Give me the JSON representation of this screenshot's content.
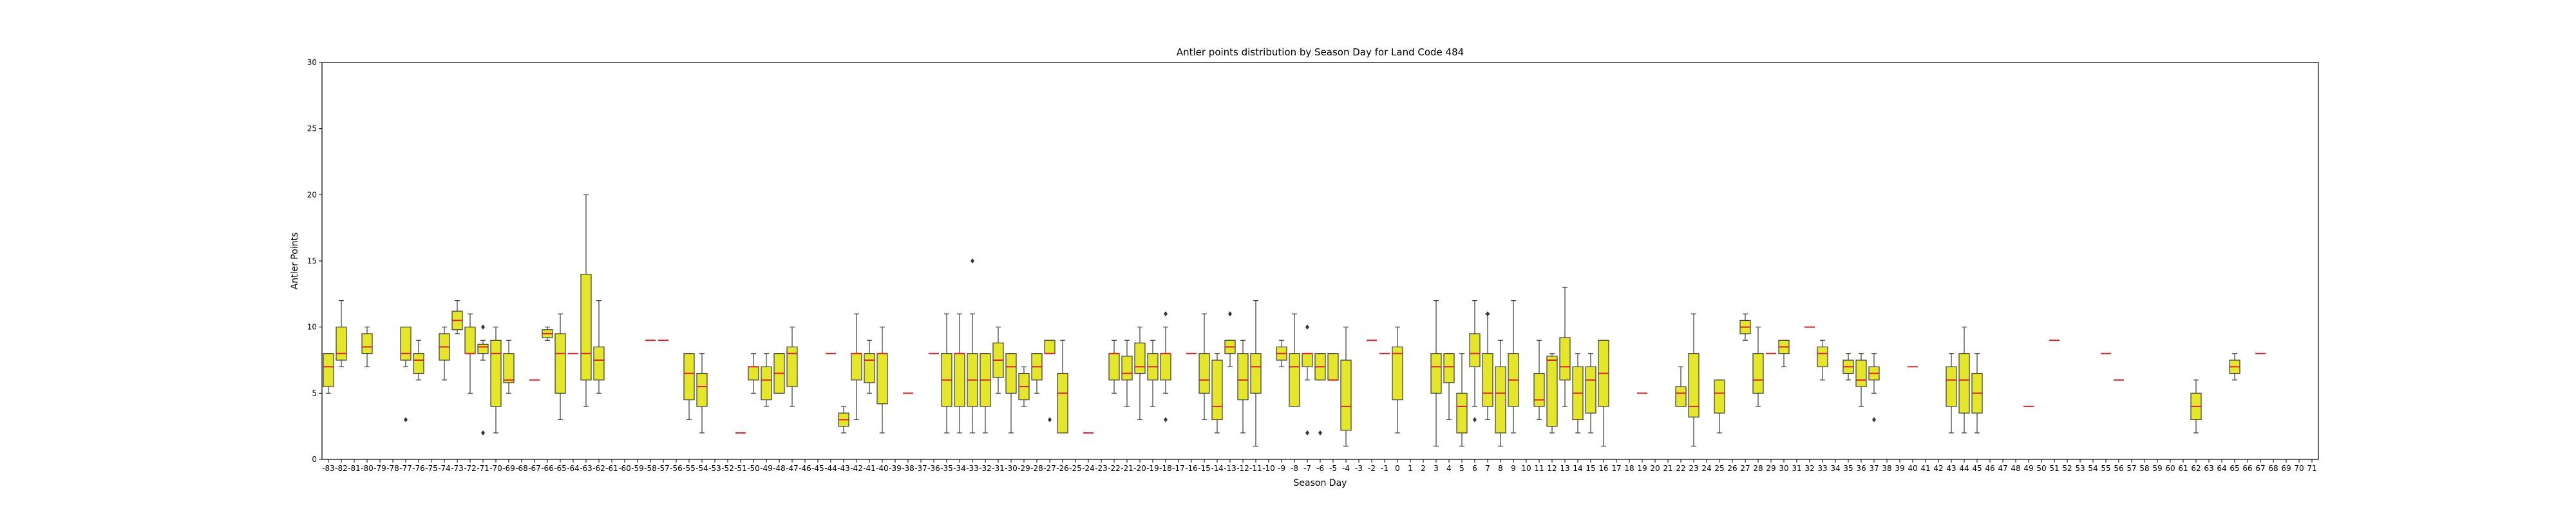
{
  "chart_data": {
    "type": "box",
    "title": "Antler points distribution by Season Day for Land Code 484",
    "xlabel": "Season Day",
    "ylabel": "Antler Points",
    "ylim": [
      0,
      30
    ],
    "yticks": [
      0,
      5,
      10,
      15,
      20,
      25,
      30
    ],
    "categories_range": [
      -83,
      71
    ],
    "grid": false,
    "colors": {
      "box_fill": "#e5e52b",
      "box_edge": "#3a3a3a",
      "median": "#d62728",
      "whisker": "#3a3a3a",
      "axis": "#000000"
    },
    "boxes": [
      {
        "day": -83,
        "q1": 5.5,
        "med": 7,
        "q3": 8,
        "lo": 5,
        "hi": 8
      },
      {
        "day": -82,
        "q1": 7.5,
        "med": 8,
        "q3": 10,
        "lo": 7,
        "hi": 12
      },
      {
        "day": -80,
        "q1": 8,
        "med": 8.5,
        "q3": 9.5,
        "lo": 7,
        "hi": 10
      },
      {
        "day": -77,
        "q1": 7.5,
        "med": 8,
        "q3": 10,
        "lo": 7,
        "hi": 10,
        "fliers": [
          3
        ]
      },
      {
        "day": -76,
        "q1": 6.5,
        "med": 7.5,
        "q3": 8,
        "lo": 6,
        "hi": 9
      },
      {
        "day": -74,
        "q1": 7.5,
        "med": 8.5,
        "q3": 9.5,
        "lo": 6,
        "hi": 10
      },
      {
        "day": -73,
        "q1": 9.8,
        "med": 10.5,
        "q3": 11.2,
        "lo": 9.5,
        "hi": 12
      },
      {
        "day": -72,
        "q1": 8,
        "med": 8,
        "q3": 10,
        "lo": 5,
        "hi": 11
      },
      {
        "day": -71,
        "q1": 8,
        "med": 8.5,
        "q3": 8.7,
        "lo": 7.5,
        "hi": 9,
        "fliers": [
          10,
          2
        ]
      },
      {
        "day": -70,
        "q1": 4,
        "med": 8,
        "q3": 9,
        "lo": 2,
        "hi": 10
      },
      {
        "day": -69,
        "q1": 5.8,
        "med": 6,
        "q3": 8,
        "lo": 5,
        "hi": 9
      },
      {
        "day": -67,
        "med": 6
      },
      {
        "day": -66,
        "q1": 9.2,
        "med": 9.5,
        "q3": 9.8,
        "lo": 9,
        "hi": 10
      },
      {
        "day": -65,
        "q1": 5,
        "med": 8,
        "q3": 9.5,
        "lo": 3,
        "hi": 11
      },
      {
        "day": -64,
        "med": 8
      },
      {
        "day": -63,
        "q1": 6,
        "med": 8,
        "q3": 14,
        "lo": 4,
        "hi": 20
      },
      {
        "day": -62,
        "q1": 6,
        "med": 7.5,
        "q3": 8.5,
        "lo": 5,
        "hi": 12
      },
      {
        "day": -58,
        "med": 9
      },
      {
        "day": -57,
        "med": 9
      },
      {
        "day": -55,
        "q1": 4.5,
        "med": 6.5,
        "q3": 8,
        "lo": 3,
        "hi": 8
      },
      {
        "day": -54,
        "q1": 4,
        "med": 5.5,
        "q3": 6.5,
        "lo": 2,
        "hi": 8
      },
      {
        "day": -51,
        "med": 2
      },
      {
        "day": -50,
        "q1": 6,
        "med": 7,
        "q3": 7,
        "lo": 5,
        "hi": 8
      },
      {
        "day": -49,
        "q1": 4.5,
        "med": 6,
        "q3": 7,
        "lo": 4,
        "hi": 8
      },
      {
        "day": -48,
        "q1": 5,
        "med": 6.5,
        "q3": 8,
        "lo": 5,
        "hi": 8
      },
      {
        "day": -47,
        "q1": 5.5,
        "med": 8,
        "q3": 8.5,
        "lo": 4,
        "hi": 10
      },
      {
        "day": -44,
        "med": 8
      },
      {
        "day": -43,
        "q1": 2.5,
        "med": 3,
        "q3": 3.5,
        "lo": 2,
        "hi": 4
      },
      {
        "day": -42,
        "q1": 6,
        "med": 8,
        "q3": 8,
        "lo": 3,
        "hi": 11
      },
      {
        "day": -41,
        "q1": 5.8,
        "med": 7.5,
        "q3": 8,
        "lo": 5,
        "hi": 9
      },
      {
        "day": -40,
        "q1": 4.2,
        "med": 8,
        "q3": 8,
        "lo": 2,
        "hi": 10
      },
      {
        "day": -38,
        "med": 5
      },
      {
        "day": -36,
        "med": 8
      },
      {
        "day": -35,
        "q1": 4,
        "med": 6,
        "q3": 8,
        "lo": 2,
        "hi": 11
      },
      {
        "day": -34,
        "q1": 4,
        "med": 8,
        "q3": 8,
        "lo": 2,
        "hi": 11
      },
      {
        "day": -33,
        "q1": 4,
        "med": 6,
        "q3": 8,
        "lo": 2,
        "hi": 11,
        "fliers": [
          15
        ]
      },
      {
        "day": -32,
        "q1": 4,
        "med": 6,
        "q3": 8,
        "lo": 2,
        "hi": 8
      },
      {
        "day": -31,
        "q1": 6.2,
        "med": 7.5,
        "q3": 8.8,
        "lo": 5,
        "hi": 10
      },
      {
        "day": -30,
        "q1": 5,
        "med": 7,
        "q3": 8,
        "lo": 2,
        "hi": 8
      },
      {
        "day": -29,
        "q1": 4.5,
        "med": 5.5,
        "q3": 6.5,
        "lo": 4,
        "hi": 7
      },
      {
        "day": -28,
        "q1": 6,
        "med": 7,
        "q3": 8,
        "lo": 5,
        "hi": 8
      },
      {
        "day": -27,
        "q1": 8,
        "med": 8,
        "q3": 9,
        "lo": 8,
        "hi": 9,
        "fliers": [
          3
        ]
      },
      {
        "day": -26,
        "q1": 2,
        "med": 5,
        "q3": 6.5,
        "lo": 2,
        "hi": 9
      },
      {
        "day": -24,
        "med": 2
      },
      {
        "day": -22,
        "q1": 6,
        "med": 8,
        "q3": 8,
        "lo": 5,
        "hi": 9
      },
      {
        "day": -21,
        "q1": 6,
        "med": 6.5,
        "q3": 7.8,
        "lo": 4,
        "hi": 9
      },
      {
        "day": -20,
        "q1": 6.5,
        "med": 7,
        "q3": 8.8,
        "lo": 3,
        "hi": 10
      },
      {
        "day": -19,
        "q1": 6,
        "med": 7,
        "q3": 8,
        "lo": 4,
        "hi": 9
      },
      {
        "day": -18,
        "q1": 6,
        "med": 8,
        "q3": 8,
        "lo": 5,
        "hi": 10,
        "fliers": [
          11,
          3
        ]
      },
      {
        "day": -16,
        "med": 8
      },
      {
        "day": -15,
        "q1": 5,
        "med": 6,
        "q3": 8,
        "lo": 3,
        "hi": 11
      },
      {
        "day": -14,
        "q1": 3,
        "med": 4,
        "q3": 7.5,
        "lo": 2,
        "hi": 8
      },
      {
        "day": -13,
        "q1": 8,
        "med": 8.5,
        "q3": 9,
        "lo": 7,
        "hi": 9,
        "fliers": [
          11
        ]
      },
      {
        "day": -12,
        "q1": 4.5,
        "med": 6,
        "q3": 8,
        "lo": 2,
        "hi": 9
      },
      {
        "day": -11,
        "q1": 5,
        "med": 7,
        "q3": 8,
        "lo": 1,
        "hi": 12
      },
      {
        "day": -9,
        "q1": 7.5,
        "med": 8,
        "q3": 8.5,
        "lo": 7,
        "hi": 9
      },
      {
        "day": -8,
        "q1": 4,
        "med": 7,
        "q3": 8,
        "lo": 4,
        "hi": 11
      },
      {
        "day": -7,
        "q1": 7,
        "med": 8,
        "q3": 8,
        "lo": 6,
        "hi": 8,
        "fliers": [
          10,
          2
        ]
      },
      {
        "day": -6,
        "q1": 6,
        "med": 7,
        "q3": 8,
        "lo": 6,
        "hi": 8,
        "fliers": [
          2
        ]
      },
      {
        "day": -5,
        "q1": 6,
        "med": 6,
        "q3": 8,
        "lo": 6,
        "hi": 8
      },
      {
        "day": -4,
        "q1": 2.2,
        "med": 4,
        "q3": 7.5,
        "lo": 1,
        "hi": 10
      },
      {
        "day": -2,
        "med": 9
      },
      {
        "day": -1,
        "med": 8
      },
      {
        "day": 0,
        "q1": 4.5,
        "med": 8,
        "q3": 8.5,
        "lo": 2,
        "hi": 10
      },
      {
        "day": 3,
        "q1": 5,
        "med": 7,
        "q3": 8,
        "lo": 1,
        "hi": 12
      },
      {
        "day": 4,
        "q1": 5.8,
        "med": 7,
        "q3": 8,
        "lo": 3,
        "hi": 8
      },
      {
        "day": 5,
        "q1": 2,
        "med": 4,
        "q3": 5,
        "lo": 1,
        "hi": 8
      },
      {
        "day": 6,
        "q1": 7,
        "med": 8,
        "q3": 9.5,
        "lo": 4,
        "hi": 12,
        "fliers": [
          3
        ]
      },
      {
        "day": 7,
        "q1": 4,
        "med": 5,
        "q3": 8,
        "lo": 3,
        "hi": 11,
        "fliers": [
          11
        ]
      },
      {
        "day": 8,
        "q1": 2,
        "med": 5,
        "q3": 7,
        "lo": 1,
        "hi": 9
      },
      {
        "day": 9,
        "q1": 4,
        "med": 6,
        "q3": 8,
        "lo": 2,
        "hi": 12
      },
      {
        "day": 11,
        "q1": 4,
        "med": 4.5,
        "q3": 6.5,
        "lo": 3,
        "hi": 9
      },
      {
        "day": 12,
        "q1": 2.5,
        "med": 7.5,
        "q3": 7.8,
        "lo": 2,
        "hi": 8
      },
      {
        "day": 13,
        "q1": 6,
        "med": 7,
        "q3": 9.2,
        "lo": 4,
        "hi": 13
      },
      {
        "day": 14,
        "q1": 3,
        "med": 5,
        "q3": 7,
        "lo": 2,
        "hi": 8
      },
      {
        "day": 15,
        "q1": 3.5,
        "med": 6,
        "q3": 7,
        "lo": 2,
        "hi": 8
      },
      {
        "day": 16,
        "q1": 4,
        "med": 6.5,
        "q3": 9,
        "lo": 1,
        "hi": 9
      },
      {
        "day": 19,
        "med": 5
      },
      {
        "day": 22,
        "q1": 4,
        "med": 5,
        "q3": 5.5,
        "lo": 4,
        "hi": 7
      },
      {
        "day": 23,
        "q1": 3.2,
        "med": 4,
        "q3": 8,
        "lo": 1,
        "hi": 11
      },
      {
        "day": 25,
        "q1": 3.5,
        "med": 5,
        "q3": 6,
        "lo": 2,
        "hi": 6
      },
      {
        "day": 27,
        "q1": 9.5,
        "med": 10,
        "q3": 10.5,
        "lo": 9,
        "hi": 11
      },
      {
        "day": 28,
        "q1": 5,
        "med": 6,
        "q3": 8,
        "lo": 4,
        "hi": 10
      },
      {
        "day": 29,
        "med": 8
      },
      {
        "day": 30,
        "q1": 8,
        "med": 8.5,
        "q3": 9,
        "lo": 7,
        "hi": 9
      },
      {
        "day": 32,
        "med": 10
      },
      {
        "day": 33,
        "q1": 7,
        "med": 8,
        "q3": 8.5,
        "lo": 6,
        "hi": 9
      },
      {
        "day": 35,
        "q1": 6.5,
        "med": 7,
        "q3": 7.5,
        "lo": 6,
        "hi": 8
      },
      {
        "day": 36,
        "q1": 5.5,
        "med": 6,
        "q3": 7.5,
        "lo": 4,
        "hi": 8
      },
      {
        "day": 37,
        "q1": 6,
        "med": 6.5,
        "q3": 7,
        "lo": 5,
        "hi": 8,
        "fliers": [
          3
        ]
      },
      {
        "day": 40,
        "med": 7
      },
      {
        "day": 43,
        "q1": 4,
        "med": 6,
        "q3": 7,
        "lo": 2,
        "hi": 8
      },
      {
        "day": 44,
        "q1": 3.5,
        "med": 6,
        "q3": 8,
        "lo": 2,
        "hi": 10
      },
      {
        "day": 45,
        "q1": 3.5,
        "med": 5,
        "q3": 6.5,
        "lo": 2,
        "hi": 8
      },
      {
        "day": 49,
        "med": 4
      },
      {
        "day": 51,
        "med": 9
      },
      {
        "day": 55,
        "med": 8
      },
      {
        "day": 56,
        "med": 6
      },
      {
        "day": 62,
        "q1": 3,
        "med": 4,
        "q3": 5,
        "lo": 2,
        "hi": 6
      },
      {
        "day": 65,
        "q1": 6.5,
        "med": 7,
        "q3": 7.5,
        "lo": 6,
        "hi": 8
      },
      {
        "day": 67,
        "med": 8
      }
    ]
  }
}
